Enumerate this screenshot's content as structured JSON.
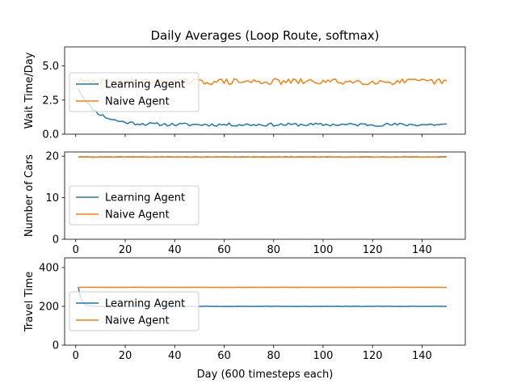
{
  "chart_data": {
    "type": "line",
    "title": "Daily Averages (Loop Route, softmax)",
    "xlabel": "Day (600 timesteps each)",
    "xlim": [
      -4.5,
      157.5
    ],
    "x_ticks": [
      0,
      20,
      40,
      60,
      80,
      100,
      120,
      140
    ],
    "x_tick_labels": [
      "0",
      "20",
      "40",
      "60",
      "80",
      "100",
      "120",
      "140"
    ],
    "colors": {
      "learning": "#1f77b4",
      "naive": "#ff7f0e"
    },
    "legend_position": "center-left",
    "panels": [
      {
        "ylabel": "Wait Time/Day",
        "ylim": [
          0,
          6.4
        ],
        "y_ticks": [
          0.0,
          2.5,
          5.0
        ],
        "y_tick_labels": [
          "0.0",
          "2.5",
          "5.0"
        ],
        "show_x_tick_labels": false,
        "series": [
          {
            "name": "Learning Agent",
            "color": "#1f77b4",
            "style": "decay_noisy",
            "start": 3.4,
            "end": 0.7,
            "decay": 7,
            "noise": 0.12,
            "seed": 11,
            "x_start": 1,
            "x_end": 150
          },
          {
            "name": "Naive Agent",
            "color": "#ff7f0e",
            "style": "noisy",
            "mean": 3.85,
            "noise": 0.22,
            "seed": 29,
            "x_start": 1,
            "x_end": 150
          }
        ]
      },
      {
        "ylabel": "Number of Cars",
        "ylim": [
          0,
          21
        ],
        "y_ticks": [
          0,
          10,
          20
        ],
        "y_tick_labels": [
          "0",
          "10",
          "20"
        ],
        "show_x_tick_labels": true,
        "series": [
          {
            "name": "Learning Agent",
            "color": "#1f77b4",
            "style": "noisy",
            "mean": 19.8,
            "noise": 0.05,
            "seed": 5,
            "x_start": 1,
            "x_end": 150
          },
          {
            "name": "Naive Agent",
            "color": "#ff7f0e",
            "style": "noisy",
            "mean": 19.8,
            "noise": 0.07,
            "seed": 41,
            "x_start": 1,
            "x_end": 150
          }
        ]
      },
      {
        "ylabel": "Travel Time",
        "ylim": [
          0,
          450
        ],
        "y_ticks": [
          0,
          200,
          400
        ],
        "y_tick_labels": [
          "0",
          "200",
          "400"
        ],
        "show_x_tick_labels": true,
        "series": [
          {
            "name": "Learning Agent",
            "color": "#1f77b4",
            "style": "decay_noisy",
            "start": 300,
            "end": 200,
            "decay": 1.2,
            "noise": 0.6,
            "seed": 17,
            "x_start": 1,
            "x_end": 150
          },
          {
            "name": "Naive Agent",
            "color": "#ff7f0e",
            "style": "noisy",
            "mean": 298,
            "noise": 0.6,
            "seed": 23,
            "x_start": 1,
            "x_end": 150
          }
        ]
      }
    ]
  }
}
